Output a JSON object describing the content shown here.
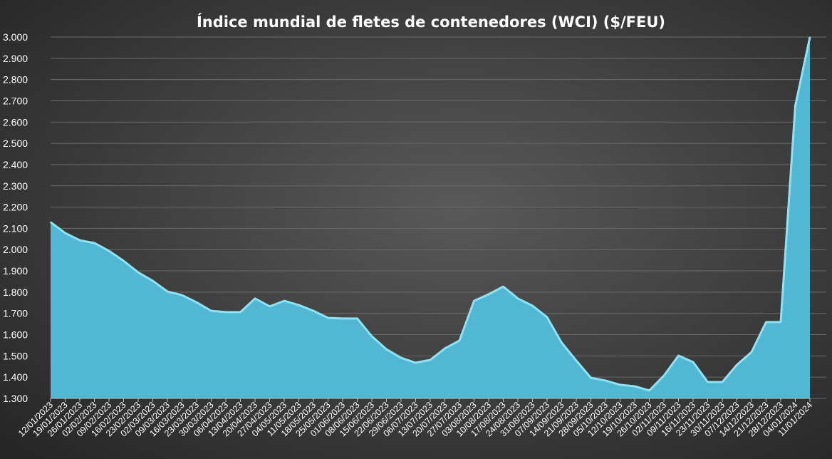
{
  "chart_data": {
    "type": "area",
    "title": "Índice mundial de fletes de contenedores (WCI) ($/FEU)",
    "xlabel": "",
    "ylabel": "",
    "ylim": [
      1300,
      3000
    ],
    "yticks": [
      "1.300",
      "1.400",
      "1.500",
      "1.600",
      "1.700",
      "1.800",
      "1.900",
      "2.000",
      "2.100",
      "2.200",
      "2.300",
      "2.400",
      "2.500",
      "2.600",
      "2.700",
      "2.800",
      "2.900",
      "3.000"
    ],
    "grid": true,
    "legend": "none",
    "colors": {
      "fill": "#52b7d2",
      "edge": "#8be3f5",
      "background": "#3c3c3c"
    },
    "categories": [
      "12/01/2023",
      "19/01/2023",
      "26/01/2023",
      "02/02/2023",
      "09/02/2023",
      "16/02/2023",
      "23/02/2023",
      "02/03/2023",
      "09/03/2023",
      "16/03/2023",
      "23/03/2023",
      "30/03/2023",
      "06/04/2023",
      "13/04/2023",
      "20/04/2023",
      "27/04/2023",
      "04/05/2023",
      "11/05/2023",
      "18/05/2023",
      "25/05/2023",
      "01/06/2023",
      "08/06/2023",
      "15/06/2023",
      "22/06/2023",
      "29/06/2023",
      "06/07/2023",
      "13/07/2023",
      "20/07/2023",
      "27/07/2023",
      "03/08/2023",
      "10/08/2023",
      "17/08/2023",
      "24/08/2023",
      "31/08/2023",
      "07/09/2023",
      "14/09/2023",
      "21/09/2023",
      "28/09/2023",
      "05/10/2023",
      "12/10/2023",
      "19/10/2023",
      "26/10/2023",
      "02/11/2023",
      "09/11/2023",
      "16/11/2023",
      "23/11/2023",
      "30/11/2023",
      "07/12/2023",
      "14/12/2023",
      "21/12/2023",
      "28/12/2023",
      "04/01/2024",
      "11/01/2024"
    ],
    "values": [
      2129,
      2078,
      2044,
      2031,
      1994,
      1947,
      1893,
      1853,
      1803,
      1786,
      1752,
      1712,
      1706,
      1706,
      1770,
      1733,
      1759,
      1739,
      1712,
      1679,
      1676,
      1676,
      1592,
      1531,
      1491,
      1468,
      1481,
      1535,
      1572,
      1759,
      1790,
      1826,
      1770,
      1736,
      1682,
      1562,
      1478,
      1397,
      1384,
      1364,
      1357,
      1337,
      1407,
      1501,
      1471,
      1377,
      1377,
      1458,
      1518,
      1659,
      1659,
      2678,
      3000
    ]
  }
}
